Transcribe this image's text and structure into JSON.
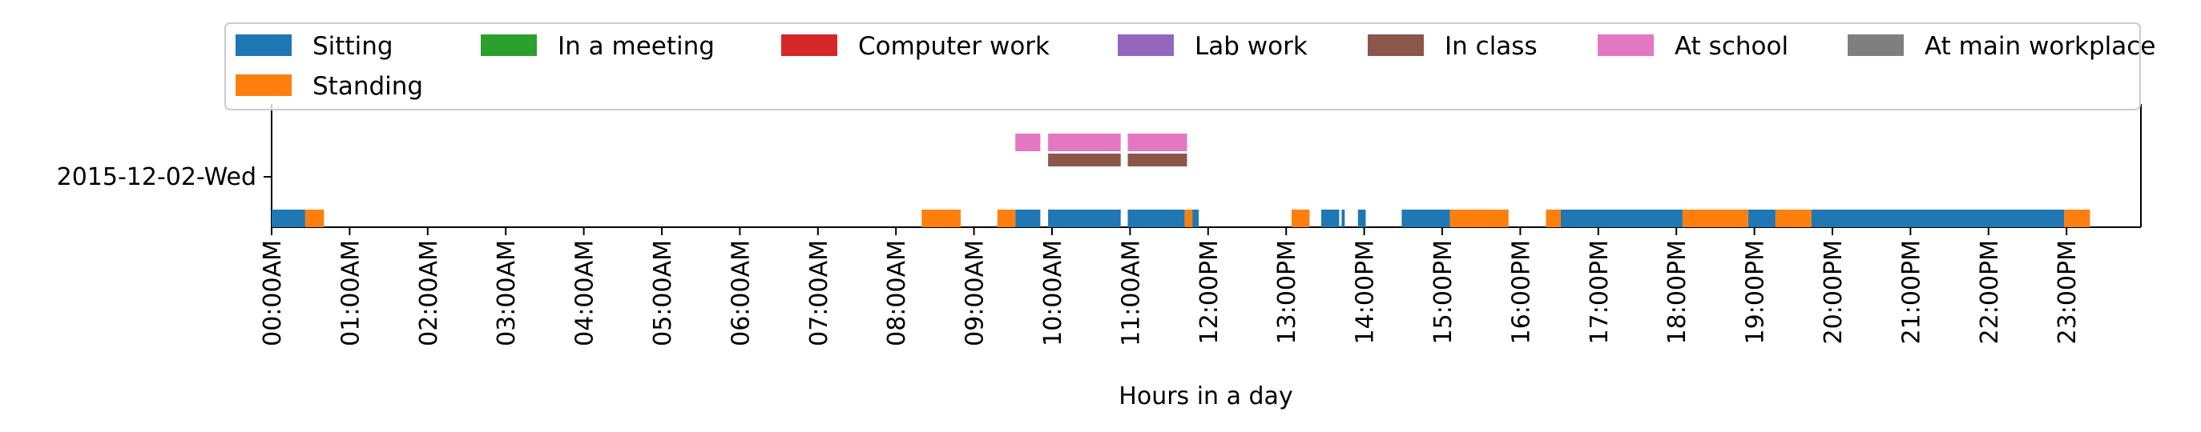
{
  "chart_data": {
    "type": "timeline",
    "xlabel": "Hours in a day",
    "ylabel": "",
    "xlim": [
      0,
      24
    ],
    "x_ticks": [
      "00:00AM",
      "01:00AM",
      "02:00AM",
      "03:00AM",
      "04:00AM",
      "05:00AM",
      "06:00AM",
      "07:00AM",
      "08:00AM",
      "09:00AM",
      "10:00AM",
      "11:00AM",
      "12:00PM",
      "13:00PM",
      "14:00PM",
      "15:00PM",
      "16:00PM",
      "17:00PM",
      "18:00PM",
      "19:00PM",
      "20:00PM",
      "21:00PM",
      "22:00PM",
      "23:00PM"
    ],
    "y_categories": [
      "2015-12-02-Wed"
    ],
    "legend_position": "top",
    "legend": [
      {
        "name": "Sitting",
        "color": "#1f77b4"
      },
      {
        "name": "In a meeting",
        "color": "#2ca02c"
      },
      {
        "name": "Computer work",
        "color": "#d62728"
      },
      {
        "name": "Lab work",
        "color": "#9467bd"
      },
      {
        "name": "In class",
        "color": "#8c564b"
      },
      {
        "name": "At school",
        "color": "#e377c2"
      },
      {
        "name": "At main workplace",
        "color": "#7f7f7f"
      },
      {
        "name": "Standing",
        "color": "#ff7f0e"
      }
    ],
    "series": [
      {
        "name": "Sitting",
        "color": "#1f77b4",
        "row": "activity",
        "intervals": [
          [
            0.0,
            0.43
          ],
          [
            9.53,
            9.85
          ],
          [
            9.95,
            10.88
          ],
          [
            10.97,
            11.7
          ],
          [
            11.78,
            11.88
          ],
          [
            13.45,
            13.68
          ],
          [
            13.71,
            13.75
          ],
          [
            13.92,
            14.02
          ],
          [
            14.48,
            15.1
          ],
          [
            16.52,
            18.08
          ],
          [
            18.92,
            19.27
          ],
          [
            19.73,
            22.97
          ]
        ]
      },
      {
        "name": "Standing",
        "color": "#ff7f0e",
        "row": "activity",
        "intervals": [
          [
            0.43,
            0.67
          ],
          [
            8.33,
            8.83
          ],
          [
            9.3,
            9.53
          ],
          [
            11.7,
            11.8
          ],
          [
            13.07,
            13.3
          ],
          [
            15.1,
            15.85
          ],
          [
            16.33,
            16.52
          ],
          [
            18.08,
            18.92
          ],
          [
            19.27,
            19.73
          ],
          [
            22.97,
            23.3
          ]
        ]
      },
      {
        "name": "In class",
        "color": "#8c564b",
        "row": "class",
        "intervals": [
          [
            9.95,
            10.88
          ],
          [
            10.97,
            11.73
          ]
        ]
      },
      {
        "name": "At school",
        "color": "#e377c2",
        "row": "school",
        "intervals": [
          [
            9.53,
            9.85
          ],
          [
            9.95,
            10.88
          ],
          [
            10.97,
            11.73
          ]
        ]
      }
    ]
  }
}
